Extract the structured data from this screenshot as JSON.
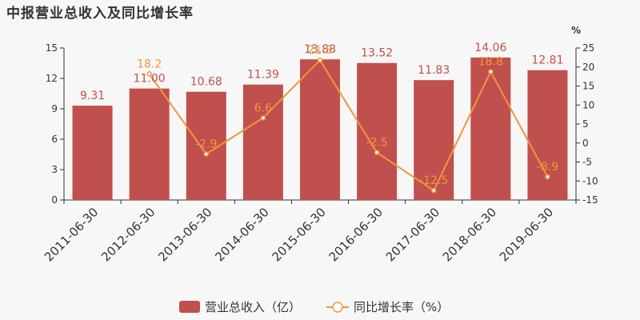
{
  "title": "中报营业总收入及同比增长率",
  "colors": {
    "bar": "#c0504d",
    "line": "#f0963c",
    "axis": "#333333",
    "background": "#f7f7f7"
  },
  "chart_data": {
    "type": "bar",
    "categories": [
      "2011-06-30",
      "2012-06-30",
      "2013-06-30",
      "2014-06-30",
      "2015-06-30",
      "2016-06-30",
      "2017-06-30",
      "2018-06-30",
      "2019-06-30"
    ],
    "series": [
      {
        "name": "营业总收入（亿）",
        "type": "bar",
        "axis": "left",
        "values": [
          9.31,
          11.0,
          10.68,
          11.39,
          13.88,
          13.52,
          11.83,
          14.06,
          12.81
        ],
        "labels": [
          "9.31",
          "11.00",
          "10.68",
          "11.39",
          "13.88",
          "13.52",
          "11.83",
          "14.06",
          "12.81"
        ]
      },
      {
        "name": "同比增长率（%）",
        "type": "line",
        "axis": "right",
        "values": [
          null,
          18.2,
          -2.9,
          6.6,
          21.8,
          -2.5,
          -12.5,
          18.8,
          -8.9
        ],
        "labels": [
          "",
          "18.2",
          "-2.9",
          "6.6",
          "21.8",
          "-2.5",
          "-12.5",
          "18.8",
          "-8.9"
        ]
      }
    ],
    "y_left": {
      "min": 0,
      "max": 15,
      "ticks": [
        "0",
        "3",
        "6",
        "9",
        "12",
        "15"
      ]
    },
    "y_right": {
      "min": -15,
      "max": 25,
      "unit": "%",
      "ticks": [
        "-15",
        "-10",
        "-5",
        "0",
        "5",
        "10",
        "15",
        "20",
        "25"
      ]
    },
    "legend": {
      "position": "bottom"
    }
  }
}
